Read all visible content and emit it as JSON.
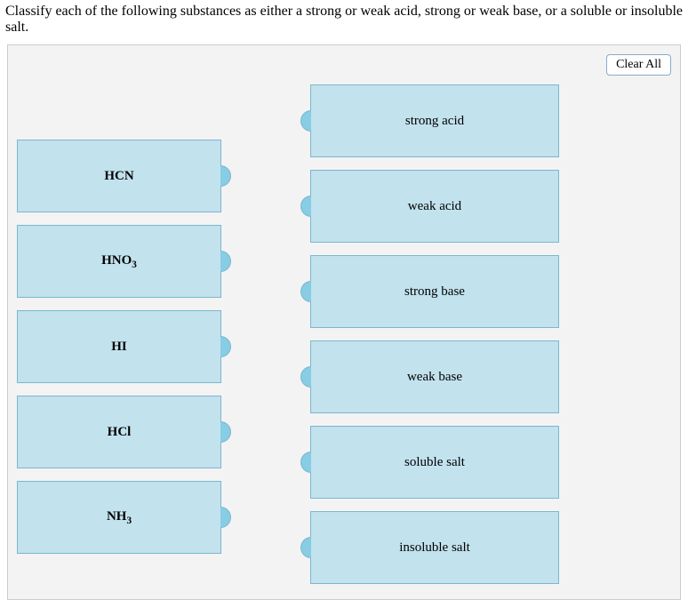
{
  "prompt": "Classify each of the following substances as either a strong or weak acid, strong or weak base, or a soluble or insoluble salt.",
  "buttons": {
    "clear_all": "Clear All"
  },
  "sources": {
    "items": [
      {
        "label_html": "HCN"
      },
      {
        "label_html": "HNO<sub>3</sub>"
      },
      {
        "label_html": "HI"
      },
      {
        "label_html": "HCl"
      },
      {
        "label_html": "NH<sub>3</sub>"
      }
    ]
  },
  "targets": {
    "items": [
      {
        "label": "strong acid"
      },
      {
        "label": "weak acid"
      },
      {
        "label": "strong base"
      },
      {
        "label": "weak base"
      },
      {
        "label": "soluble salt"
      },
      {
        "label": "insoluble salt"
      }
    ]
  },
  "colors": {
    "panel_bg": "#f3f3f3",
    "tile_bg": "#c2e2ee",
    "tile_border": "#7db6d0",
    "nub_bg": "#87cde4"
  }
}
